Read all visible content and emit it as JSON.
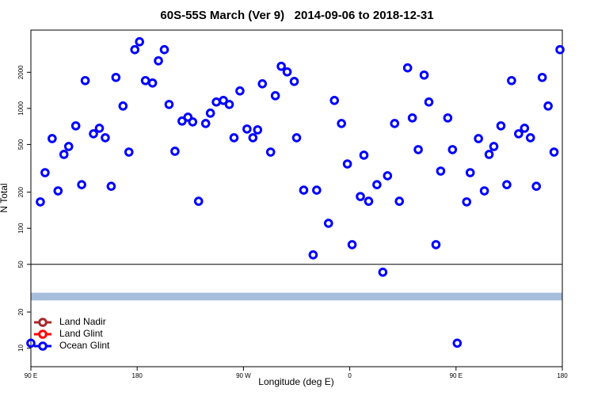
{
  "chart_data": {
    "type": "scatter",
    "title": "60S-55S March (Ver 9)   2014-09-06 to 2018-12-31",
    "x_label": "Longitude (deg E)",
    "y_label": "N Total",
    "xlim": [
      90,
      540
    ],
    "xticks": [
      {
        "value": 90,
        "label": "90 E"
      },
      {
        "value": 180,
        "label": "180"
      },
      {
        "value": 270,
        "label": "90 W"
      },
      {
        "value": 360,
        "label": "0"
      },
      {
        "value": 450,
        "label": "90 E"
      },
      {
        "value": 540,
        "label": "180"
      }
    ],
    "ylim": [
      7,
      4500
    ],
    "log_y": true,
    "yticks": [
      10,
      20,
      50,
      100,
      200,
      500,
      1000,
      2000
    ],
    "hline": {
      "value": 50,
      "color": "#000000"
    },
    "band": {
      "ylim": [
        25,
        29
      ],
      "color": "#a6bddb"
    },
    "legend": "bottom-left",
    "series": [
      {
        "name": "Land Nadir",
        "color": "#a52a2a",
        "x": [],
        "values": []
      },
      {
        "name": "Land Glint",
        "color": "#ff0000",
        "x": [],
        "values": []
      },
      {
        "name": "Ocean Glint",
        "color": "#0000ff",
        "x": [
          90,
          98,
          102,
          108,
          113,
          118,
          122,
          128,
          133,
          136,
          143,
          148,
          153,
          158,
          162,
          168,
          173,
          178,
          182,
          187,
          193,
          198,
          203,
          207,
          212,
          218,
          223,
          227,
          232,
          238,
          242,
          247,
          253,
          258,
          262,
          267,
          273,
          278,
          282,
          286,
          293,
          297,
          302,
          307,
          313,
          315,
          321,
          329,
          332,
          342,
          347,
          353,
          358,
          362,
          369,
          372,
          376,
          383,
          388,
          392,
          398,
          402,
          409,
          413,
          418,
          423,
          427,
          433,
          437,
          443,
          447,
          451,
          459,
          462,
          469,
          474,
          478,
          482,
          488,
          493,
          497,
          503,
          508,
          513,
          518,
          523,
          528,
          533,
          538
        ],
        "values": [
          11,
          166,
          291,
          560,
          205,
          413,
          481,
          715,
          231,
          1706,
          614,
          683,
          569,
          224,
          1813,
          1047,
          432,
          3090,
          3597,
          1706,
          1629,
          2495,
          3090,
          1079,
          439,
          784,
          845,
          771,
          168,
          748,
          913,
          1130,
          1165,
          1079,
          569,
          1399,
          673,
          569,
          662,
          1604,
          432,
          1276,
          2244,
          2017,
          1679,
          569,
          208,
          60,
          208,
          110,
          1165,
          748,
          344,
          73,
          184,
          407,
          168,
          231,
          43,
          274,
          748,
          168,
          2178,
          833,
          453,
          1897,
          1130,
          73,
          300,
          833,
          453,
          11,
          166,
          291,
          560,
          205,
          413,
          481,
          715,
          231,
          1706,
          614,
          683,
          569,
          224,
          1813,
          1047,
          432,
          3090
        ]
      }
    ]
  }
}
